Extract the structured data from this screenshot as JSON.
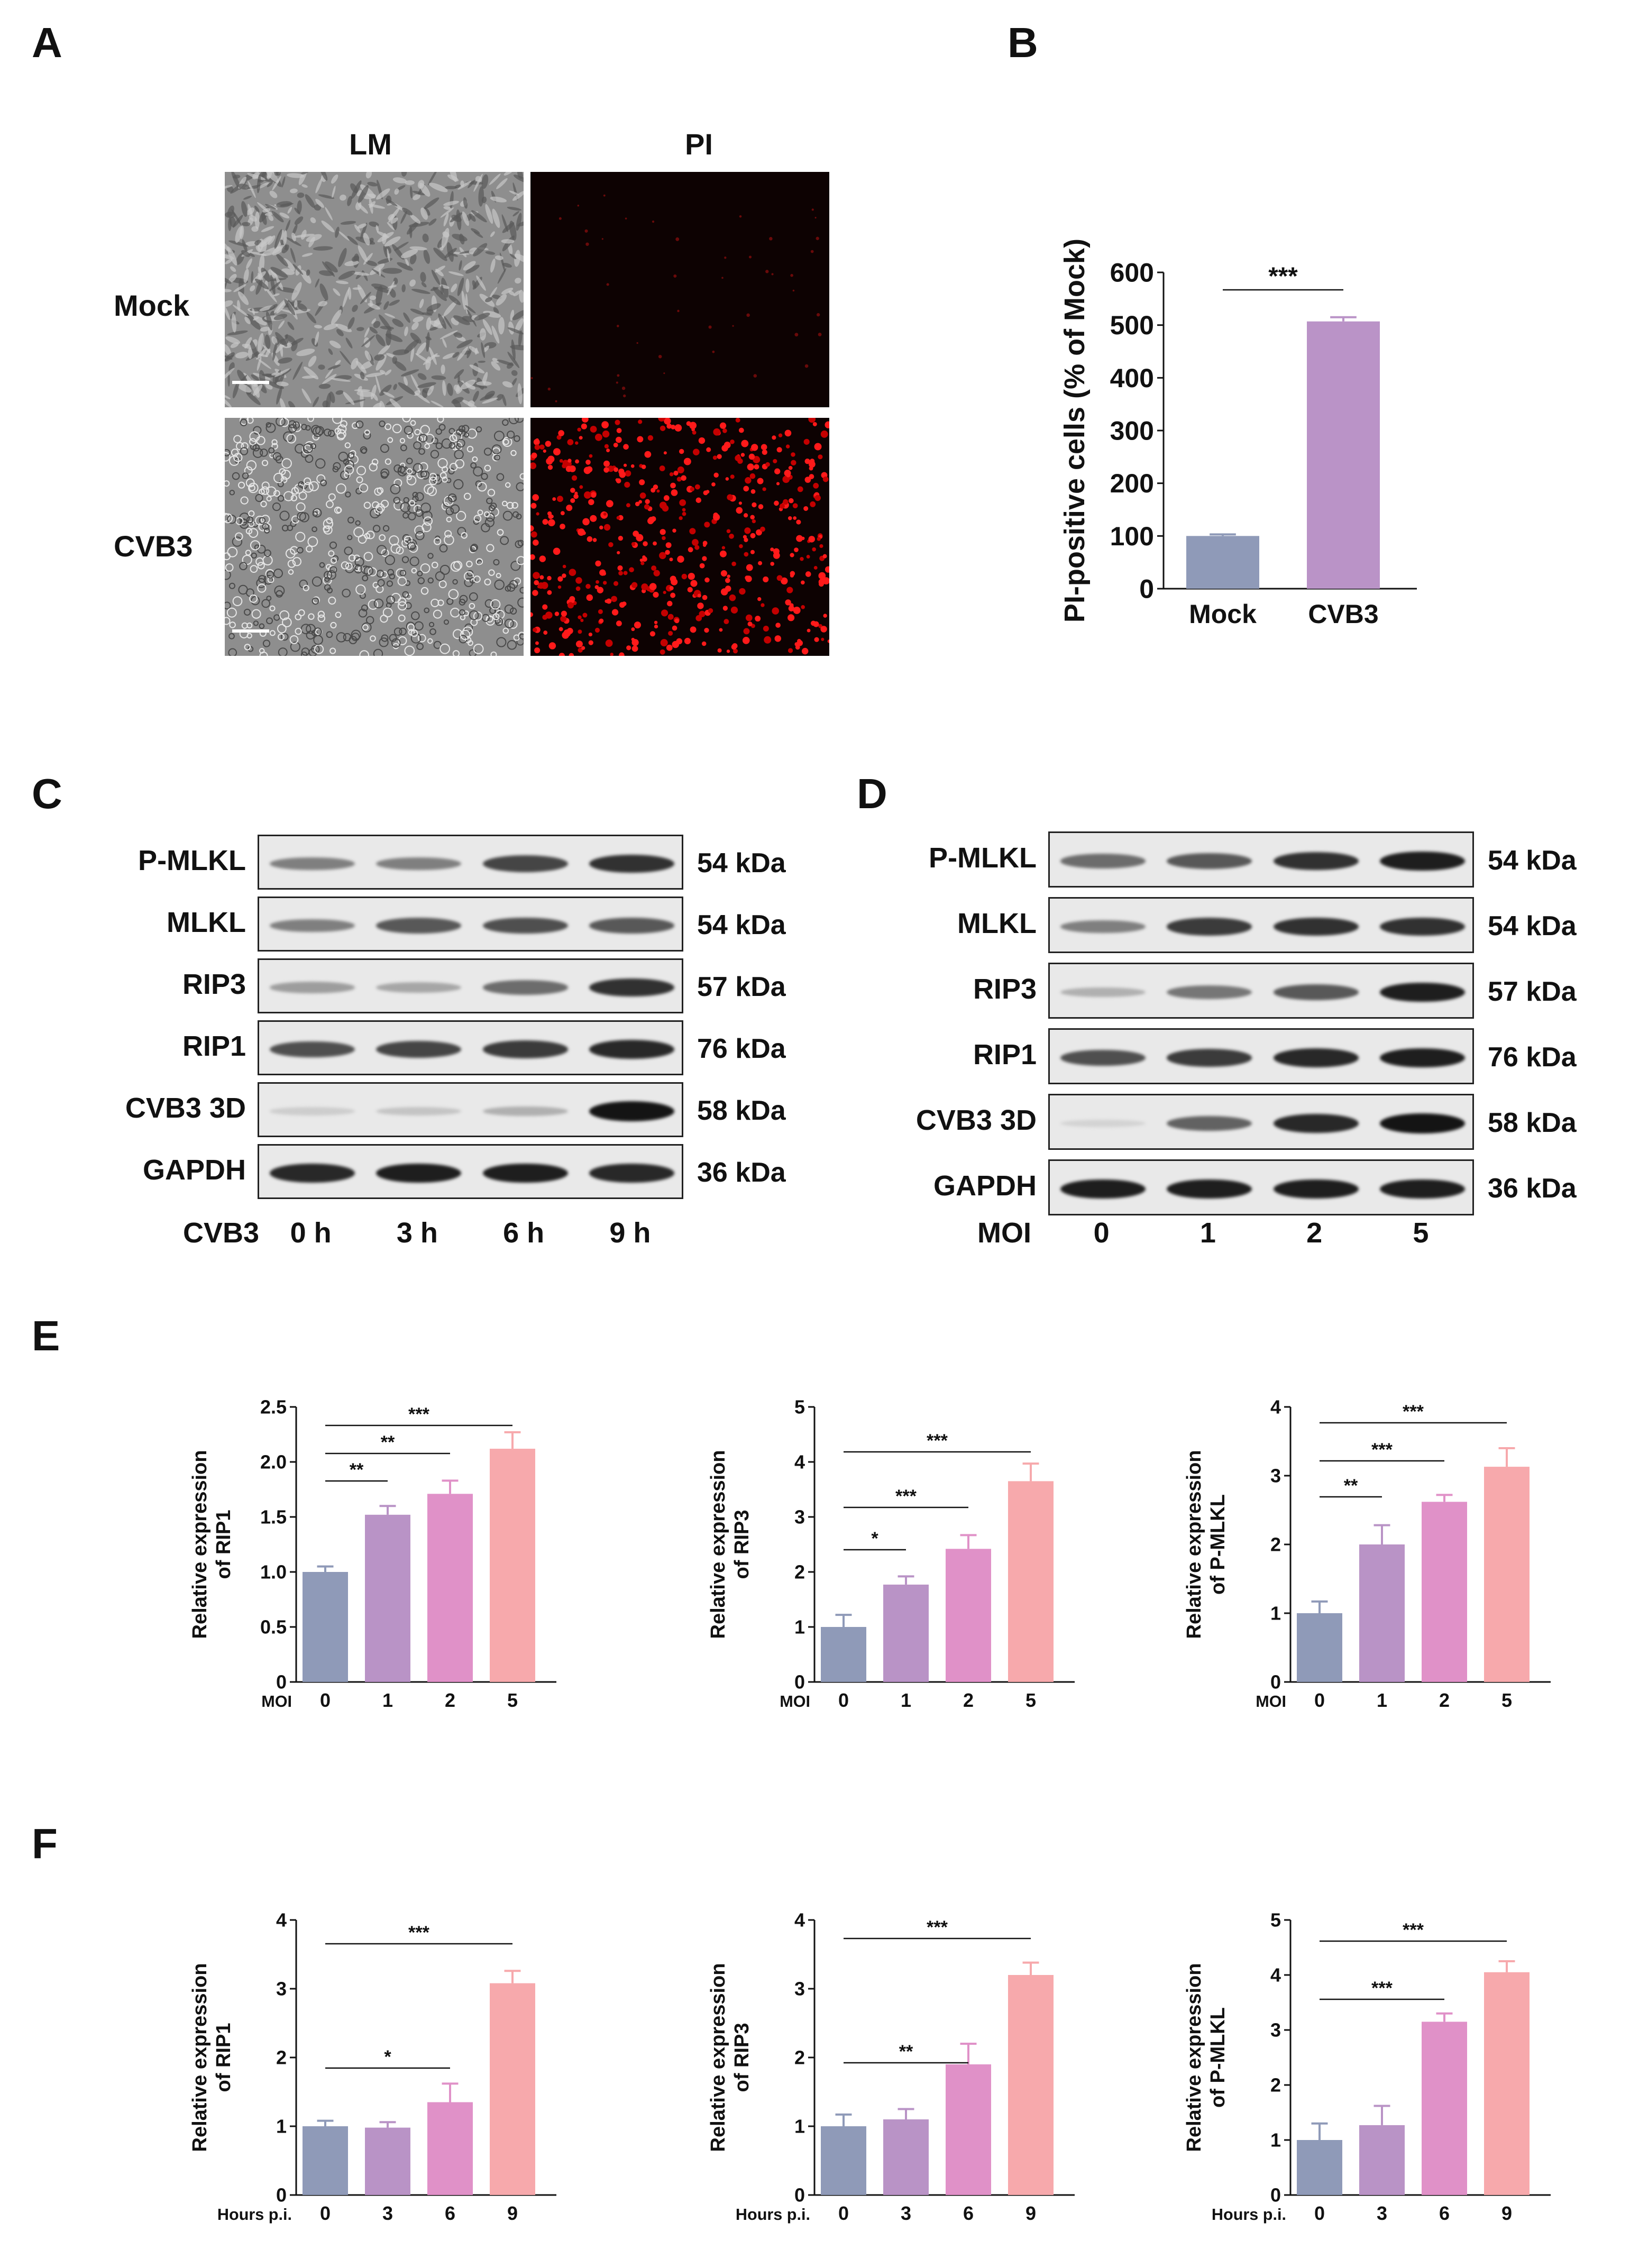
{
  "panels": {
    "a": "A",
    "b": "B",
    "c": "C",
    "d": "D",
    "e": "E",
    "f": "F"
  },
  "panel_a": {
    "col_labels": [
      "LM",
      "PI"
    ],
    "row_labels": [
      "Mock",
      "CVB3"
    ]
  },
  "panel_c": {
    "bands": [
      {
        "name": "P-MLKL",
        "size": "54 kDa",
        "intensity": [
          0.45,
          0.45,
          0.75,
          0.85
        ]
      },
      {
        "name": "MLKL",
        "size": "54 kDa",
        "intensity": [
          0.45,
          0.65,
          0.7,
          0.65
        ]
      },
      {
        "name": "RIP3",
        "size": "57 kDa",
        "intensity": [
          0.3,
          0.25,
          0.55,
          0.85
        ]
      },
      {
        "name": "RIP1",
        "size": "76 kDa",
        "intensity": [
          0.7,
          0.75,
          0.8,
          0.9
        ]
      },
      {
        "name": "CVB3 3D",
        "size": "58 kDa",
        "intensity": [
          0.05,
          0.1,
          0.2,
          1.0
        ]
      },
      {
        "name": "GAPDH",
        "size": "36 kDa",
        "intensity": [
          0.9,
          0.95,
          0.95,
          0.9
        ]
      }
    ],
    "axis_label": "CVB3",
    "lanes": [
      "0 h",
      "3 h",
      "6 h",
      "9 h"
    ]
  },
  "panel_d": {
    "bands": [
      {
        "name": "P-MLKL",
        "size": "54 kDa",
        "intensity": [
          0.55,
          0.65,
          0.85,
          0.95
        ]
      },
      {
        "name": "MLKL",
        "size": "54 kDa",
        "intensity": [
          0.45,
          0.8,
          0.85,
          0.85
        ]
      },
      {
        "name": "RIP3",
        "size": "57 kDa",
        "intensity": [
          0.2,
          0.5,
          0.65,
          0.95
        ]
      },
      {
        "name": "RIP1",
        "size": "76 kDa",
        "intensity": [
          0.7,
          0.8,
          0.9,
          0.95
        ]
      },
      {
        "name": "CVB3 3D",
        "size": "58 kDa",
        "intensity": [
          0.02,
          0.6,
          0.9,
          1.0
        ]
      },
      {
        "name": "GAPDH",
        "size": "36 kDa",
        "intensity": [
          0.95,
          0.95,
          0.95,
          0.95
        ]
      }
    ],
    "axis_label": "MOI",
    "lanes": [
      "0",
      "1",
      "2",
      "5"
    ]
  },
  "colors": {
    "mock": "#8f9ab8",
    "cvb3": "#ba93c7",
    "c0": "#8f9ab8",
    "c1": "#b993c6",
    "c2": "#e091c8",
    "c3": "#f7a9ac"
  },
  "chart_data": [
    {
      "id": "B",
      "type": "bar",
      "categories": [
        "Mock",
        "CVB3"
      ],
      "values": [
        100,
        507
      ],
      "errors": [
        3,
        8
      ],
      "ylabel": "PI-positive cells (% of Mock)",
      "ylim": [
        0,
        600
      ],
      "yticks": [
        0,
        100,
        200,
        300,
        400,
        500,
        600
      ],
      "significance": [
        {
          "from": 0,
          "to": 1,
          "label": "***"
        }
      ],
      "xlabel": ""
    },
    {
      "id": "E1",
      "type": "bar",
      "categories": [
        "0",
        "1",
        "2",
        "5"
      ],
      "values": [
        1.0,
        1.52,
        1.71,
        2.12
      ],
      "errors": [
        0.05,
        0.08,
        0.12,
        0.15
      ],
      "ylabel": [
        "Relative expression",
        "of RIP1"
      ],
      "xlabel": "MOI",
      "ylim": [
        0,
        2.5
      ],
      "yticks": [
        "0",
        "0.5",
        "1.0",
        "1.5",
        "2.0",
        "2.5"
      ],
      "significance": [
        {
          "from": 0,
          "to": 1,
          "label": "**"
        },
        {
          "from": 0,
          "to": 2,
          "label": "**"
        },
        {
          "from": 0,
          "to": 3,
          "label": "***"
        }
      ]
    },
    {
      "id": "E2",
      "type": "bar",
      "categories": [
        "0",
        "1",
        "2",
        "5"
      ],
      "values": [
        1.0,
        1.77,
        2.42,
        3.65
      ],
      "errors": [
        0.22,
        0.15,
        0.25,
        0.32
      ],
      "ylabel": [
        "Relative expression",
        "of RIP3"
      ],
      "xlabel": "MOI",
      "ylim": [
        0,
        5
      ],
      "yticks": [
        "0",
        "1",
        "2",
        "3",
        "4",
        "5"
      ],
      "significance": [
        {
          "from": 0,
          "to": 1,
          "label": "*"
        },
        {
          "from": 0,
          "to": 2,
          "label": "***"
        },
        {
          "from": 0,
          "to": 3,
          "label": "***"
        }
      ]
    },
    {
      "id": "E3",
      "type": "bar",
      "categories": [
        "0",
        "1",
        "2",
        "5"
      ],
      "values": [
        1.0,
        2.0,
        2.62,
        3.13
      ],
      "errors": [
        0.17,
        0.28,
        0.1,
        0.27
      ],
      "ylabel": [
        "Relative expression",
        "of P-MLKL"
      ],
      "xlabel": "MOI",
      "ylim": [
        0,
        4
      ],
      "yticks": [
        "0",
        "1",
        "2",
        "3",
        "4"
      ],
      "significance": [
        {
          "from": 0,
          "to": 1,
          "label": "**"
        },
        {
          "from": 0,
          "to": 2,
          "label": "***"
        },
        {
          "from": 0,
          "to": 3,
          "label": "***"
        }
      ]
    },
    {
      "id": "F1",
      "type": "bar",
      "categories": [
        "0",
        "3",
        "6",
        "9"
      ],
      "values": [
        1.0,
        0.98,
        1.35,
        3.08
      ],
      "errors": [
        0.08,
        0.08,
        0.27,
        0.18
      ],
      "ylabel": [
        "Relative expression",
        "of RIP1"
      ],
      "xlabel": "Hours p.i.",
      "ylim": [
        0,
        4
      ],
      "yticks": [
        "0",
        "1",
        "2",
        "3",
        "4"
      ],
      "significance": [
        {
          "from": 0,
          "to": 2,
          "label": "*"
        },
        {
          "from": 0,
          "to": 3,
          "label": "***"
        }
      ]
    },
    {
      "id": "F2",
      "type": "bar",
      "categories": [
        "0",
        "3",
        "6",
        "9"
      ],
      "values": [
        1.0,
        1.1,
        1.9,
        3.2
      ],
      "errors": [
        0.17,
        0.15,
        0.3,
        0.18
      ],
      "ylabel": [
        "Relative expression",
        "of RIP3"
      ],
      "xlabel": "Hours p.i.",
      "ylim": [
        0,
        4
      ],
      "yticks": [
        "0",
        "1",
        "2",
        "3",
        "4"
      ],
      "significance": [
        {
          "from": 0,
          "to": 2,
          "label": "**"
        },
        {
          "from": 0,
          "to": 3,
          "label": "***"
        }
      ]
    },
    {
      "id": "F3",
      "type": "bar",
      "categories": [
        "0",
        "3",
        "6",
        "9"
      ],
      "values": [
        1.0,
        1.27,
        3.15,
        4.05
      ],
      "errors": [
        0.3,
        0.35,
        0.15,
        0.2
      ],
      "ylabel": [
        "Relative expression",
        "of P-MLKL"
      ],
      "xlabel": "Hours p.i.",
      "ylim": [
        0,
        5
      ],
      "yticks": [
        "0",
        "1",
        "2",
        "3",
        "4",
        "5"
      ],
      "significance": [
        {
          "from": 0,
          "to": 2,
          "label": "***"
        },
        {
          "from": 0,
          "to": 3,
          "label": "***"
        }
      ]
    }
  ]
}
